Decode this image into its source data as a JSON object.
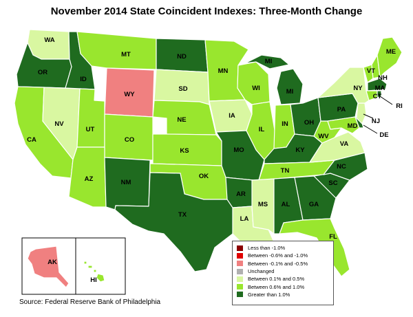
{
  "title": "November 2014 State Coincident Indexes: Three-Month Change",
  "source": "Source: Federal Reserve Bank of Philadelphia",
  "colors": {
    "lt_neg1": "#8b0000",
    "neg06_neg1": "#e00000",
    "neg01_neg05": "#f08080",
    "unchanged": "#b0b0b0",
    "p01_05": "#d9f7a1",
    "p06_10": "#99e62e",
    "gt1": "#1f6b1f"
  },
  "legend": [
    {
      "label": "Less than -1.0%",
      "key": "lt_neg1"
    },
    {
      "label": "Between -0.6% and -1.0%",
      "key": "neg06_neg1"
    },
    {
      "label": "Between -0.1% and -0.5%",
      "key": "neg01_neg05"
    },
    {
      "label": "Unchanged",
      "key": "unchanged"
    },
    {
      "label": "Between 0.1% and 0.5%",
      "key": "p01_05"
    },
    {
      "label": "Between 0.6% and 1.0%",
      "key": "p06_10"
    },
    {
      "label": "Greater than 1.0%",
      "key": "gt1"
    }
  ],
  "states": {
    "WA": "p01_05",
    "OR": "gt1",
    "ID": "gt1",
    "MT": "p06_10",
    "WY": "neg01_neg05",
    "ND": "gt1",
    "SD": "p01_05",
    "NE": "p06_10",
    "KS": "p06_10",
    "OK": "p06_10",
    "TX": "gt1",
    "NM": "gt1",
    "CO": "p06_10",
    "UT": "p06_10",
    "AZ": "p06_10",
    "NV": "p01_05",
    "CA": "p06_10",
    "MN": "p06_10",
    "IA": "p01_05",
    "MO": "gt1",
    "AR": "gt1",
    "LA": "p01_05",
    "MS": "p01_05",
    "AL": "gt1",
    "GA": "gt1",
    "FL": "p06_10",
    "SC": "gt1",
    "NC": "gt1",
    "TN": "p06_10",
    "KY": "gt1",
    "IL": "p06_10",
    "WI": "p06_10",
    "MI": "gt1",
    "IN": "p06_10",
    "OH": "gt1",
    "WV": "p06_10",
    "VA": "p01_05",
    "PA": "gt1",
    "NY": "p01_05",
    "VT": "p06_10",
    "NH": "p06_10",
    "ME": "p06_10",
    "MA": "gt1",
    "CT": "p06_10",
    "RI": "gt1",
    "NJ": "p01_05",
    "DE": "gt1",
    "MD": "p06_10",
    "AK": "neg01_neg05",
    "HI": "p06_10"
  }
}
